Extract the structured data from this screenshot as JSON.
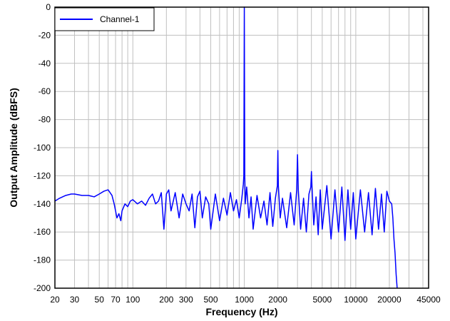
{
  "chart_data": {
    "type": "line",
    "title": "",
    "xlabel": "Frequency (Hz)",
    "ylabel": "Output Amplitude (dBFS)",
    "x_scale": "log",
    "xlim": [
      20,
      45000
    ],
    "ylim": [
      -200,
      0
    ],
    "grid": true,
    "legend_position": "top-left",
    "x_ticks": [
      20,
      30,
      50,
      70,
      100,
      200,
      300,
      500,
      1000,
      2000,
      5000,
      10000,
      20000,
      45000
    ],
    "x_tick_labels": [
      "20",
      "30",
      "50",
      "70",
      "100",
      "200",
      "300",
      "500",
      "1000",
      "2000",
      "5000",
      "10000",
      "20000",
      "45000"
    ],
    "y_ticks": [
      0,
      -20,
      -40,
      -60,
      -80,
      -100,
      -120,
      -140,
      -160,
      -180,
      -200
    ],
    "y_tick_labels": [
      "0",
      "-20",
      "-40",
      "-60",
      "-80",
      "-100",
      "-120",
      "-140",
      "-160",
      "-180",
      "-200"
    ],
    "series": [
      {
        "name": "Channel-1",
        "color": "#0000ff",
        "x": [
          20,
          22,
          25,
          28,
          30,
          35,
          40,
          45,
          50,
          55,
          60,
          65,
          68,
          70,
          72,
          75,
          78,
          80,
          85,
          90,
          95,
          100,
          110,
          120,
          130,
          140,
          150,
          160,
          170,
          180,
          185,
          190,
          200,
          210,
          220,
          240,
          260,
          280,
          300,
          320,
          340,
          360,
          380,
          400,
          420,
          450,
          480,
          500,
          550,
          600,
          650,
          700,
          750,
          800,
          850,
          900,
          950,
          980,
          990,
          995,
          1000,
          1005,
          1010,
          1020,
          1050,
          1100,
          1150,
          1200,
          1300,
          1400,
          1500,
          1600,
          1700,
          1800,
          1900,
          1980,
          2000,
          2020,
          2100,
          2200,
          2400,
          2600,
          2800,
          2950,
          3000,
          3050,
          3200,
          3400,
          3600,
          3800,
          3950,
          4000,
          4050,
          4200,
          4400,
          4600,
          4800,
          5000,
          5500,
          6000,
          6500,
          7000,
          7500,
          8000,
          8500,
          9000,
          9500,
          10000,
          11000,
          12000,
          13000,
          14000,
          15000,
          16000,
          17000,
          18000,
          19000,
          20000,
          21000,
          21500,
          22000,
          22500,
          23000,
          23500
        ],
        "y": [
          -138,
          -136,
          -134,
          -133,
          -133,
          -134,
          -134,
          -135,
          -133,
          -131,
          -130,
          -134,
          -140,
          -145,
          -150,
          -147,
          -152,
          -145,
          -140,
          -142,
          -138,
          -137,
          -140,
          -138,
          -141,
          -136,
          -133,
          -140,
          -138,
          -132,
          -145,
          -158,
          -133,
          -130,
          -145,
          -132,
          -150,
          -133,
          -140,
          -145,
          -133,
          -157,
          -135,
          -131,
          -150,
          -135,
          -140,
          -158,
          -133,
          -152,
          -136,
          -148,
          -132,
          -145,
          -137,
          -150,
          -136,
          -126,
          -120,
          -60,
          0,
          -60,
          -120,
          -140,
          -128,
          -150,
          -135,
          -158,
          -134,
          -150,
          -138,
          -155,
          -132,
          -156,
          -136,
          -127,
          -102,
          -127,
          -150,
          -136,
          -157,
          -132,
          -155,
          -130,
          -105,
          -130,
          -158,
          -136,
          -160,
          -133,
          -128,
          -117,
          -128,
          -155,
          -135,
          -162,
          -130,
          -158,
          -127,
          -165,
          -130,
          -160,
          -128,
          -166,
          -130,
          -158,
          -132,
          -165,
          -130,
          -160,
          -132,
          -162,
          -129,
          -158,
          -133,
          -160,
          -131,
          -138,
          -140,
          -150,
          -165,
          -175,
          -190,
          -200
        ]
      }
    ]
  }
}
